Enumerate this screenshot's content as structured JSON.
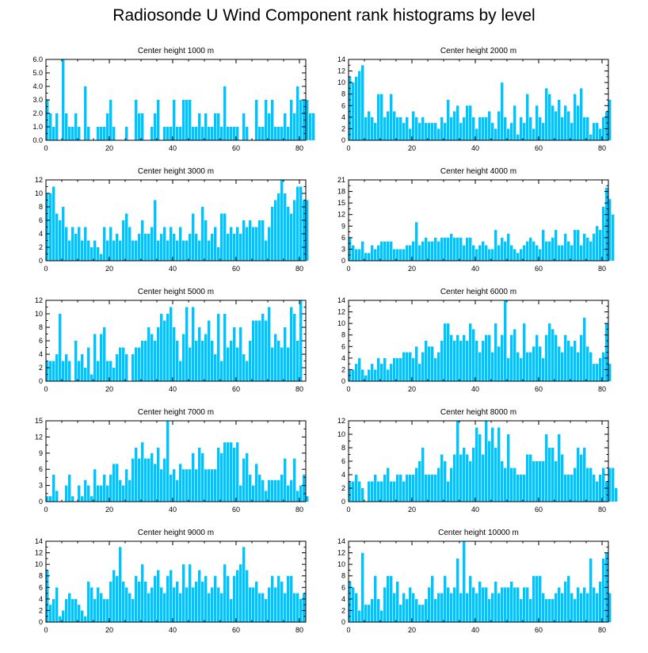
{
  "title": "Radiosonde U Wind Component rank histograms by level",
  "colors": {
    "bar": "#00c4ff",
    "bar_edge": "#1fa6e6",
    "frame": "#000000"
  },
  "chart_data": [
    {
      "type": "bar",
      "title": "Center height 1000 m",
      "xlim": [
        0,
        82
      ],
      "ylim": [
        0,
        6
      ],
      "xticks": [
        0,
        20,
        40,
        60,
        80
      ],
      "yticks": [
        0,
        1,
        2,
        3,
        4,
        5,
        6
      ],
      "ytick_labels": [
        "0.0",
        "1.0",
        "2.0",
        "3.0",
        "4.0",
        "5.0",
        "6.0"
      ],
      "values": [
        3,
        2,
        1,
        2,
        0,
        6,
        2,
        1,
        1,
        2,
        1,
        0,
        4,
        1,
        0,
        0,
        1,
        1,
        1,
        2,
        3,
        1,
        0,
        0,
        0,
        1,
        0,
        0,
        3,
        2,
        2,
        0,
        0,
        1,
        2,
        3,
        0,
        1,
        1,
        1,
        3,
        1,
        1,
        3,
        3,
        3,
        1,
        1,
        2,
        1,
        2,
        1,
        1,
        2,
        2,
        1,
        4,
        1,
        1,
        1,
        1,
        0,
        2,
        1,
        0,
        0,
        3,
        1,
        1,
        3,
        2,
        3,
        1,
        1,
        1,
        2,
        1,
        3,
        2,
        4,
        3,
        3,
        3,
        2,
        2
      ],
      "grid": false
    },
    {
      "type": "bar",
      "title": "Center height 2000 m",
      "xlim": [
        0,
        82
      ],
      "ylim": [
        0,
        14
      ],
      "xticks": [
        0,
        20,
        40,
        60,
        80
      ],
      "yticks": [
        0,
        2,
        4,
        6,
        8,
        10,
        12,
        14
      ],
      "ytick_labels": [
        "0",
        "2",
        "4",
        "6",
        "8",
        "10",
        "12",
        "14"
      ],
      "values": [
        11,
        10,
        11,
        12,
        13,
        4,
        5,
        4,
        3,
        8,
        8,
        4,
        5,
        8,
        5,
        4,
        4,
        3,
        4,
        2,
        5,
        4,
        3,
        4,
        3,
        3,
        3,
        3,
        2,
        4,
        3,
        7,
        4,
        5,
        6,
        3,
        4,
        6,
        6,
        4,
        2,
        4,
        4,
        4,
        5,
        3,
        2,
        5,
        10,
        4,
        2,
        3,
        6,
        1,
        4,
        3,
        8,
        4,
        2,
        6,
        4,
        3,
        9,
        8,
        6,
        5,
        7,
        4,
        6,
        5,
        3,
        8,
        6,
        9,
        4,
        4,
        1,
        3,
        3,
        2,
        4,
        5,
        7
      ],
      "grid": false
    },
    {
      "type": "bar",
      "title": "Center height 3000 m",
      "xlim": [
        0,
        82
      ],
      "ylim": [
        0,
        12
      ],
      "xticks": [
        0,
        20,
        40,
        60,
        80
      ],
      "yticks": [
        0,
        2,
        4,
        6,
        8,
        10,
        12
      ],
      "ytick_labels": [
        "0",
        "2",
        "4",
        "6",
        "8",
        "10",
        "12"
      ],
      "values": [
        10,
        10,
        11,
        7,
        6,
        8,
        5,
        3,
        5,
        4,
        5,
        3,
        5,
        3,
        2,
        3,
        2,
        1,
        5,
        3,
        5,
        3,
        4,
        3,
        6,
        7,
        5,
        3,
        3,
        4,
        6,
        4,
        4,
        5,
        9,
        3,
        4,
        5,
        3,
        5,
        4,
        3,
        5,
        3,
        3,
        4,
        7,
        4,
        3,
        8,
        6,
        3,
        4,
        5,
        2,
        7,
        7,
        4,
        5,
        4,
        5,
        4,
        6,
        5,
        6,
        5,
        5,
        6,
        6,
        3,
        5,
        8,
        9,
        10,
        12,
        10,
        8,
        7,
        9,
        11,
        11,
        9,
        9
      ],
      "grid": false
    },
    {
      "type": "bar",
      "title": "Center height 4000 m",
      "xlim": [
        0,
        82
      ],
      "ylim": [
        0,
        21
      ],
      "xticks": [
        0,
        20,
        40,
        60,
        80
      ],
      "yticks": [
        0,
        3,
        6,
        9,
        12,
        15,
        18,
        21
      ],
      "ytick_labels": [
        "0",
        "3",
        "6",
        "9",
        "12",
        "15",
        "18",
        "21"
      ],
      "values": [
        6,
        4,
        3,
        3,
        5,
        2,
        2,
        4,
        3,
        4,
        5,
        5,
        5,
        5,
        3,
        3,
        3,
        3,
        4,
        4,
        5,
        10,
        4,
        5,
        6,
        5,
        5,
        6,
        5,
        6,
        6,
        6,
        7,
        6,
        6,
        6,
        4,
        6,
        6,
        4,
        3,
        4,
        5,
        4,
        3,
        3,
        8,
        4,
        6,
        5,
        7,
        4,
        3,
        2,
        3,
        4,
        5,
        6,
        5,
        4,
        3,
        8,
        5,
        5,
        6,
        8,
        4,
        4,
        7,
        5,
        4,
        8,
        8,
        4,
        7,
        6,
        5,
        7,
        9,
        8,
        14,
        19,
        16,
        12
      ],
      "grid": false
    },
    {
      "type": "bar",
      "title": "Center height 5000 m",
      "xlim": [
        0,
        82
      ],
      "ylim": [
        0,
        12
      ],
      "xticks": [
        0,
        20,
        40,
        60,
        80
      ],
      "yticks": [
        0,
        2,
        4,
        6,
        8,
        10,
        12
      ],
      "ytick_labels": [
        "0",
        "2",
        "4",
        "6",
        "8",
        "10",
        "12"
      ],
      "values": [
        3,
        3,
        3,
        4,
        10,
        3,
        4,
        3,
        0,
        6,
        3,
        4,
        2,
        5,
        1,
        7,
        3,
        7,
        8,
        3,
        3,
        2,
        4,
        5,
        5,
        4,
        0,
        4,
        5,
        5,
        6,
        6,
        8,
        7,
        6,
        8,
        10,
        9,
        10,
        11,
        8,
        6,
        3,
        7,
        11,
        5,
        11,
        6,
        8,
        6,
        7,
        9,
        6,
        4,
        10,
        3,
        10,
        5,
        6,
        8,
        5,
        8,
        4,
        3,
        6,
        9,
        9,
        9,
        10,
        9,
        11,
        5,
        7,
        6,
        5,
        8,
        5,
        11,
        10,
        6,
        12
      ],
      "grid": false
    },
    {
      "type": "bar",
      "title": "Center height 6000 m",
      "xlim": [
        0,
        82
      ],
      "ylim": [
        0,
        14
      ],
      "xticks": [
        0,
        20,
        40,
        60,
        80
      ],
      "yticks": [
        0,
        2,
        4,
        6,
        8,
        10,
        12,
        14
      ],
      "ytick_labels": [
        "0",
        "2",
        "4",
        "6",
        "8",
        "10",
        "12",
        "14"
      ],
      "values": [
        2,
        2,
        3,
        4,
        2,
        1,
        2,
        3,
        2,
        4,
        3,
        4,
        2,
        3,
        4,
        4,
        4,
        5,
        5,
        5,
        4,
        6,
        3,
        5,
        7,
        6,
        6,
        4,
        5,
        7,
        10,
        10,
        8,
        7,
        8,
        7,
        8,
        7,
        10,
        9,
        7,
        5,
        7,
        8,
        8,
        5,
        10,
        6,
        8,
        14,
        4,
        8,
        9,
        5,
        4,
        10,
        5,
        5,
        6,
        8,
        6,
        4,
        8,
        10,
        9,
        8,
        6,
        5,
        8,
        7,
        6,
        7,
        5,
        8,
        11,
        6,
        5,
        3,
        3,
        4,
        5,
        10,
        3
      ],
      "grid": false
    },
    {
      "type": "bar",
      "title": "Center height 7000 m",
      "xlim": [
        0,
        82
      ],
      "ylim": [
        0,
        15
      ],
      "xticks": [
        0,
        20,
        40,
        60,
        80
      ],
      "yticks": [
        0,
        3,
        6,
        9,
        12,
        15
      ],
      "ytick_labels": [
        "0",
        "3",
        "6",
        "9",
        "12",
        "15"
      ],
      "values": [
        1,
        1,
        5,
        2,
        0,
        0,
        3,
        5,
        1,
        0,
        3,
        1,
        4,
        3,
        1,
        6,
        3,
        3,
        5,
        3,
        5,
        7,
        7,
        4,
        3,
        6,
        4,
        8,
        10,
        8,
        11,
        8,
        8,
        9,
        7,
        10,
        6,
        8,
        15,
        5,
        6,
        4,
        7,
        6,
        6,
        6,
        9,
        6,
        10,
        9,
        6,
        6,
        6,
        6,
        10,
        9,
        11,
        11,
        11,
        10,
        11,
        3,
        8,
        9,
        5,
        3,
        7,
        5,
        4,
        2,
        4,
        4,
        4,
        4,
        5,
        8,
        3,
        4,
        8,
        2,
        3,
        5,
        1
      ],
      "grid": false
    },
    {
      "type": "bar",
      "title": "Center height 8000 m",
      "xlim": [
        0,
        82
      ],
      "ylim": [
        0,
        12
      ],
      "xticks": [
        0,
        20,
        40,
        60,
        80
      ],
      "yticks": [
        0,
        2,
        4,
        6,
        8,
        10,
        12
      ],
      "ytick_labels": [
        "0",
        "2",
        "4",
        "6",
        "8",
        "10",
        "12"
      ],
      "values": [
        3,
        3,
        4,
        3,
        2,
        0,
        3,
        3,
        4,
        3,
        3,
        4,
        5,
        3,
        3,
        4,
        4,
        3,
        4,
        4,
        4,
        5,
        6,
        8,
        4,
        4,
        4,
        4,
        5,
        7,
        6,
        3,
        5,
        7,
        12,
        7,
        8,
        7,
        6,
        8,
        11,
        10,
        7,
        12,
        9,
        11,
        8,
        11,
        6,
        5,
        10,
        5,
        5,
        4,
        4,
        4,
        7,
        7,
        6,
        6,
        6,
        6,
        10,
        8,
        8,
        6,
        10,
        7,
        4,
        4,
        4,
        5,
        8,
        7,
        8,
        5,
        5,
        4,
        3,
        4,
        5,
        3,
        5,
        5,
        2
      ],
      "grid": false
    },
    {
      "type": "bar",
      "title": "Center height 9000 m",
      "xlim": [
        0,
        82
      ],
      "ylim": [
        0,
        14
      ],
      "xticks": [
        0,
        20,
        40,
        60,
        80
      ],
      "yticks": [
        0,
        2,
        4,
        6,
        8,
        10,
        12,
        14
      ],
      "ytick_labels": [
        "0",
        "2",
        "4",
        "6",
        "8",
        "10",
        "12",
        "14"
      ],
      "values": [
        9,
        3,
        4,
        6,
        1,
        2,
        4,
        5,
        4,
        4,
        3,
        2,
        1,
        7,
        6,
        4,
        6,
        5,
        4,
        4,
        7,
        9,
        8,
        13,
        7,
        6,
        5,
        4,
        8,
        7,
        10,
        7,
        5,
        6,
        8,
        9,
        6,
        5,
        8,
        9,
        6,
        7,
        5,
        10,
        6,
        10,
        6,
        7,
        9,
        7,
        8,
        5,
        6,
        8,
        6,
        5,
        10,
        8,
        4,
        8,
        9,
        10,
        13,
        9,
        6,
        6,
        7,
        5,
        5,
        4,
        6,
        8,
        6,
        8,
        7,
        5,
        8,
        8,
        5,
        5,
        4,
        5
      ],
      "grid": false
    },
    {
      "type": "bar",
      "title": "Center height 10000 m",
      "xlim": [
        0,
        82
      ],
      "ylim": [
        0,
        14
      ],
      "xticks": [
        0,
        20,
        40,
        60,
        80
      ],
      "yticks": [
        0,
        2,
        4,
        6,
        8,
        10,
        12,
        14
      ],
      "ytick_labels": [
        "0",
        "2",
        "4",
        "6",
        "8",
        "10",
        "12",
        "14"
      ],
      "values": [
        7,
        6,
        5,
        2,
        12,
        3,
        3,
        4,
        8,
        4,
        2,
        6,
        8,
        8,
        5,
        7,
        3,
        5,
        4,
        6,
        5,
        4,
        3,
        3,
        4,
        6,
        8,
        4,
        5,
        5,
        8,
        6,
        5,
        6,
        11,
        5,
        14,
        5,
        8,
        6,
        5,
        7,
        6,
        6,
        4,
        5,
        7,
        5,
        6,
        6,
        6,
        7,
        6,
        6,
        4,
        6,
        6,
        4,
        8,
        8,
        8,
        5,
        4,
        4,
        4,
        5,
        6,
        5,
        7,
        8,
        5,
        4,
        6,
        5,
        6,
        5,
        11,
        6,
        5,
        7,
        11,
        12,
        5
      ],
      "grid": false
    }
  ]
}
